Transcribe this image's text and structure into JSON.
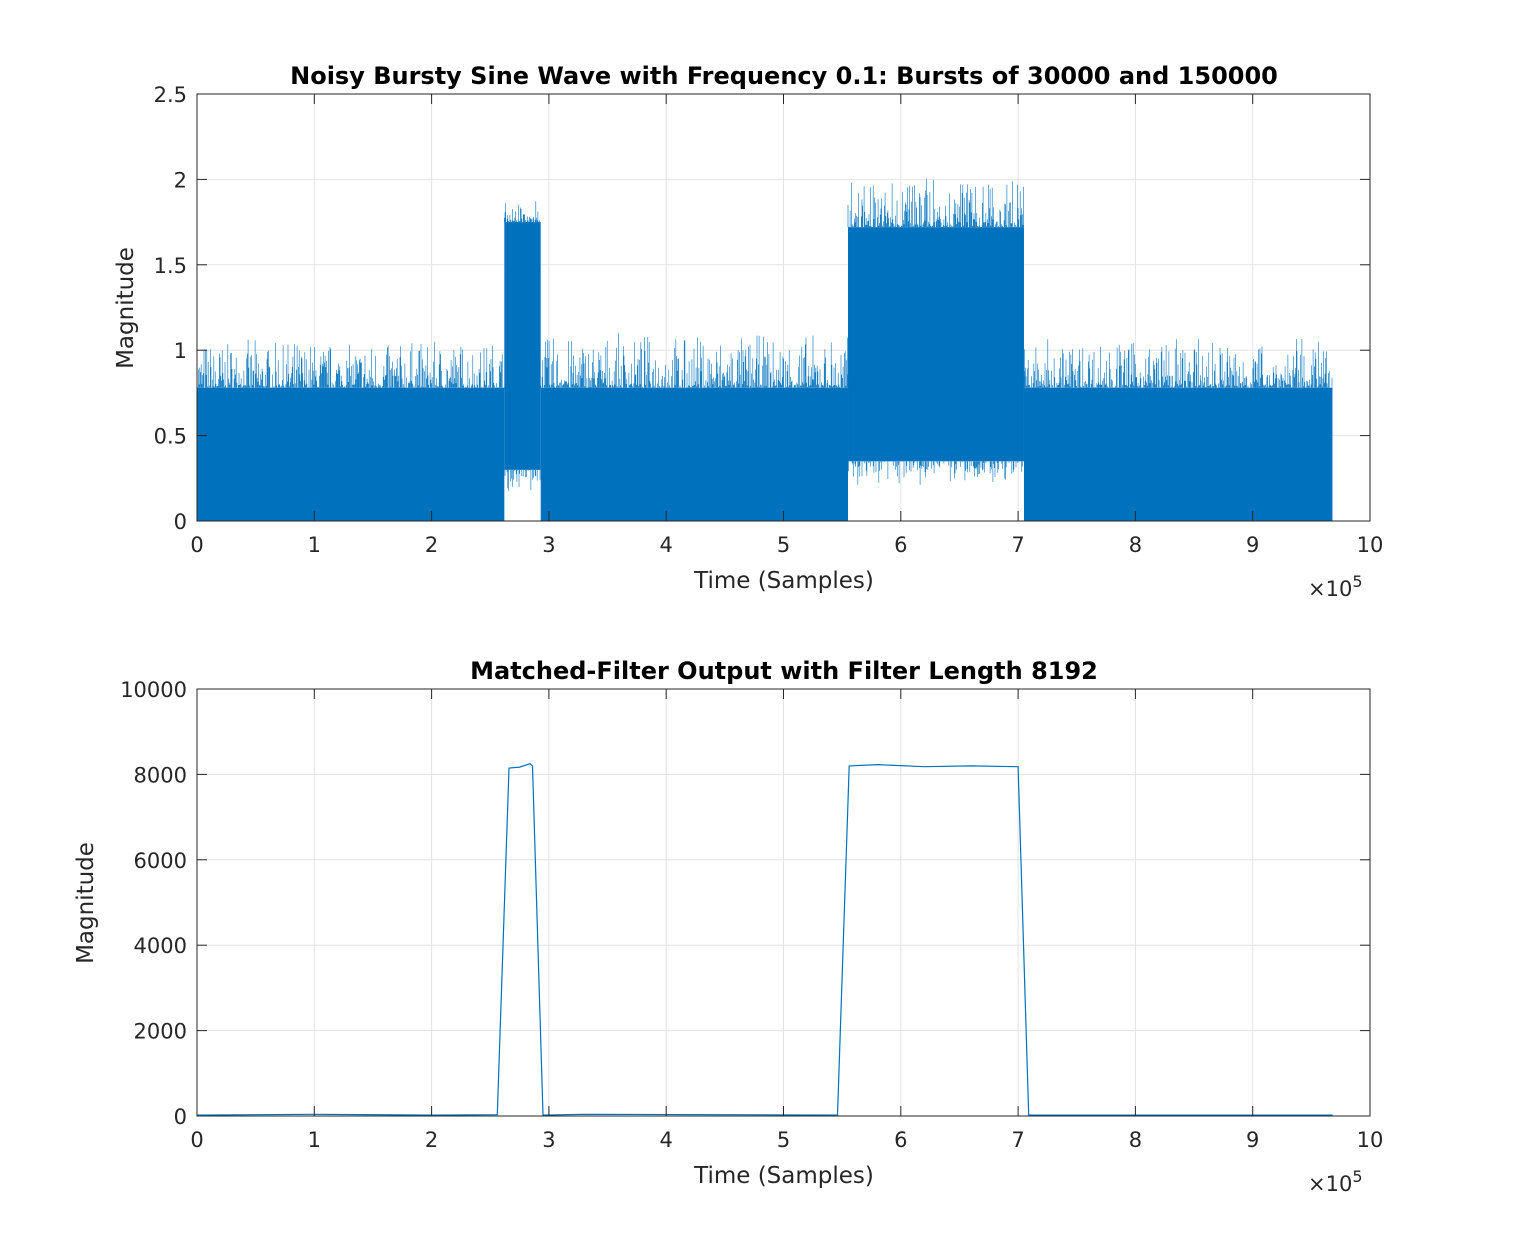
{
  "chart_data": [
    {
      "type": "area",
      "title": "Noisy Bursty Sine Wave with Frequency 0.1: Bursts of 30000 and 150000",
      "xlabel": "Time (Samples)",
      "ylabel": "Magnitude",
      "xlim": [
        0,
        1000000
      ],
      "ylim": [
        0,
        2.5
      ],
      "x_ticks": [
        "0",
        "1",
        "2",
        "3",
        "4",
        "5",
        "6",
        "7",
        "8",
        "9",
        "10"
      ],
      "y_ticks": [
        "0",
        "0.5",
        "1",
        "1.5",
        "2",
        "2.5"
      ],
      "x_exponent": "×10",
      "x_exponent_power": "5",
      "grid": true,
      "color": "#0072BD",
      "segments": [
        {
          "start": 0,
          "end": 262000,
          "min": 0.0,
          "typical_max": 0.78,
          "peak_max": 1.05
        },
        {
          "start": 262000,
          "end": 293000,
          "min": 0.3,
          "typical_max": 1.75,
          "peak_max": 1.87
        },
        {
          "start": 293000,
          "end": 555000,
          "min": 0.0,
          "typical_max": 0.78,
          "peak_max": 1.08
        },
        {
          "start": 555000,
          "end": 705000,
          "min": 0.35,
          "typical_max": 1.72,
          "peak_max": 2.0
        },
        {
          "start": 705000,
          "end": 968000,
          "min": 0.0,
          "typical_max": 0.78,
          "peak_max": 1.06
        }
      ]
    },
    {
      "type": "line",
      "title": "Matched-Filter Output with Filter Length 8192",
      "xlabel": "Time (Samples)",
      "ylabel": "Magnitude",
      "xlim": [
        0,
        1000000
      ],
      "ylim": [
        0,
        10000
      ],
      "x_ticks": [
        "0",
        "1",
        "2",
        "3",
        "4",
        "5",
        "6",
        "7",
        "8",
        "9",
        "10"
      ],
      "y_ticks": [
        "0",
        "2000",
        "4000",
        "6000",
        "8000",
        "10000"
      ],
      "x_exponent": "×10",
      "x_exponent_power": "5",
      "grid": true,
      "color": "#0072BD",
      "x": [
        0,
        100000,
        200000,
        256000,
        266000,
        275000,
        284000,
        286000,
        295000,
        330000,
        450000,
        546000,
        556000,
        580000,
        620000,
        660000,
        700000,
        709000,
        800000,
        968000
      ],
      "y": [
        20,
        40,
        20,
        30,
        8150,
        8170,
        8250,
        8200,
        20,
        40,
        30,
        20,
        8200,
        8230,
        8180,
        8200,
        8180,
        20,
        20,
        20
      ]
    }
  ]
}
